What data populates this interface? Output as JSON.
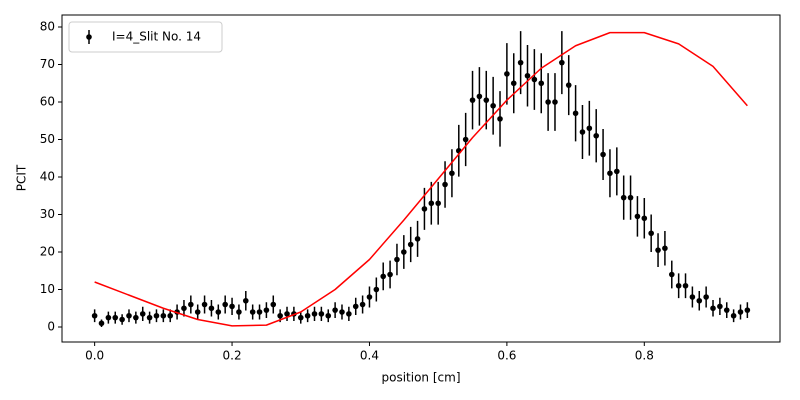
{
  "chart_data": {
    "type": "errorbar",
    "xlabel": "position [cm]",
    "ylabel": "PCIT",
    "xlim": [
      -0.0475,
      0.9975
    ],
    "ylim": [
      -4,
      83.2
    ],
    "xticks": [
      {
        "value": 0,
        "label": "0.0"
      },
      0.2,
      0.4,
      0.6,
      0.8
    ],
    "yticks": [
      0,
      10,
      20,
      30,
      40,
      50,
      60,
      70,
      80
    ],
    "legend": "upper left",
    "series": [
      {
        "name": "I=4_Slit No. 14",
        "type": "errorbar",
        "color": "#000000",
        "x": [
          0.0,
          0.01,
          0.02,
          0.03,
          0.04,
          0.05,
          0.06,
          0.07,
          0.08,
          0.09,
          0.1,
          0.11,
          0.12,
          0.13,
          0.14,
          0.15,
          0.16,
          0.17,
          0.18,
          0.19,
          0.2,
          0.21,
          0.22,
          0.23,
          0.24,
          0.25,
          0.26,
          0.27,
          0.28,
          0.29,
          0.3,
          0.31,
          0.32,
          0.33,
          0.34,
          0.35,
          0.36,
          0.37,
          0.38,
          0.39,
          0.4,
          0.41,
          0.42,
          0.43,
          0.44,
          0.45,
          0.46,
          0.47,
          0.48,
          0.49,
          0.5,
          0.51,
          0.52,
          0.53,
          0.54,
          0.55,
          0.56,
          0.57,
          0.58,
          0.59,
          0.6,
          0.61,
          0.62,
          0.63,
          0.64,
          0.65,
          0.66,
          0.67,
          0.68,
          0.69,
          0.7,
          0.71,
          0.72,
          0.73,
          0.74,
          0.75,
          0.76,
          0.77,
          0.78,
          0.79,
          0.8,
          0.81,
          0.82,
          0.83,
          0.84,
          0.85,
          0.86,
          0.87,
          0.88,
          0.89,
          0.9,
          0.91,
          0.92,
          0.93,
          0.94,
          0.95
        ],
        "values": [
          3,
          1,
          2.5,
          2.5,
          2,
          3,
          2.5,
          3.5,
          2.5,
          3,
          3,
          3,
          4,
          5,
          6,
          4,
          6,
          5,
          4,
          6,
          5.5,
          4,
          7,
          4,
          4,
          4.5,
          6,
          3,
          3.5,
          3.5,
          2.5,
          3,
          3.5,
          3.5,
          3,
          4.5,
          4,
          3.5,
          5.5,
          6,
          8,
          10,
          13.5,
          14,
          18,
          20,
          22,
          23.5,
          31.5,
          33,
          33,
          38,
          41,
          47,
          50,
          60.5,
          61.5,
          60.5,
          59,
          55.5,
          67.5,
          65,
          70.5,
          67,
          66,
          65,
          60,
          60,
          70.5,
          64.5,
          57,
          52,
          53,
          51,
          46,
          41,
          41.5,
          34.5,
          34.5,
          29.5,
          29,
          25,
          20.5,
          21,
          14,
          11,
          11,
          8,
          7,
          8,
          5,
          5.5,
          4.5,
          3,
          4,
          4.5
        ],
        "errors": [
          1.7,
          1,
          1.6,
          1.6,
          1.4,
          1.7,
          1.6,
          1.9,
          1.6,
          1.7,
          1.7,
          1.7,
          2,
          2.2,
          2.4,
          2,
          2.4,
          2.2,
          2,
          2.4,
          2.3,
          2,
          2.6,
          2,
          2,
          2.1,
          2.4,
          1.7,
          1.9,
          1.9,
          1.6,
          1.7,
          1.9,
          1.9,
          1.7,
          2.1,
          2,
          1.9,
          2.3,
          2.4,
          2.8,
          3.2,
          3.7,
          3.7,
          4.2,
          4.5,
          4.7,
          4.8,
          5.6,
          5.7,
          5.7,
          6.2,
          6.4,
          6.9,
          7.1,
          7.8,
          7.8,
          7.8,
          7.7,
          7.4,
          8.2,
          8,
          8.4,
          8.2,
          8.1,
          8,
          7.7,
          7.7,
          8.4,
          8,
          7.5,
          7.2,
          7.3,
          7.1,
          6.8,
          6.4,
          6.4,
          5.9,
          5.9,
          5.4,
          5.4,
          5,
          4.5,
          4.6,
          3.7,
          3.3,
          3.3,
          2.8,
          2.6,
          2.8,
          2.2,
          2.3,
          2.1,
          1.7,
          2,
          2.1
        ]
      },
      {
        "type": "line",
        "color": "#ff0000",
        "x": [
          0,
          0.05,
          0.1,
          0.15,
          0.2,
          0.25,
          0.3,
          0.35,
          0.4,
          0.45,
          0.5,
          0.55,
          0.6,
          0.65,
          0.7,
          0.75,
          0.8,
          0.85,
          0.9,
          0.95
        ],
        "values": [
          12,
          8.5,
          5,
          2,
          0.3,
          0.5,
          4,
          10,
          18,
          28.5,
          39.5,
          50.5,
          60.5,
          69,
          75,
          78.5,
          78.5,
          75.5,
          69.5,
          59
        ]
      }
    ]
  }
}
